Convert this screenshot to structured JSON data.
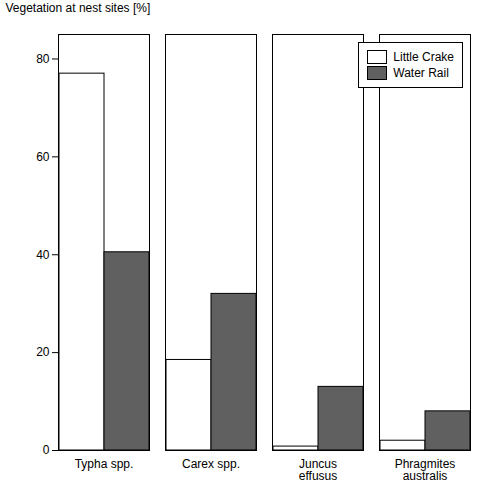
{
  "chart_data": {
    "type": "bar",
    "categories": [
      "Typha spp.",
      "Carex spp.",
      "Juncus\neffusus",
      "Phragmites\naustralis"
    ],
    "series": [
      {
        "name": "Little Crake",
        "color": "#ffffff",
        "values": [
          77,
          18.5,
          0.8,
          2
        ]
      },
      {
        "name": "Water Rail",
        "color": "#606060",
        "values": [
          40.5,
          32,
          13,
          8
        ]
      }
    ],
    "ylabel": "Vegetation at nest sites [%]",
    "ylim": [
      0,
      85
    ],
    "yticks": [
      0,
      20,
      40,
      60,
      80
    ],
    "legend": "upper right"
  }
}
